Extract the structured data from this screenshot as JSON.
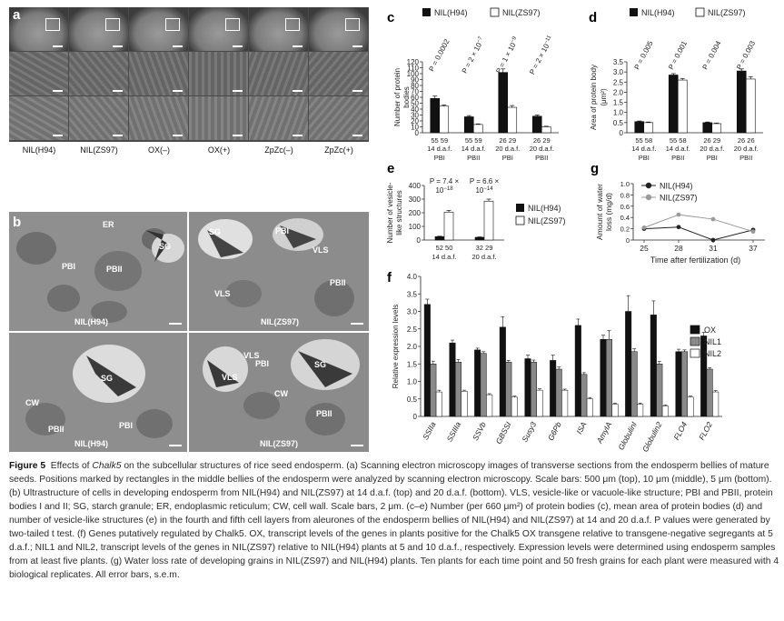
{
  "panel_a": {
    "letter": "a",
    "columns": [
      "NIL(H94)",
      "NIL(ZS97)",
      "OX(–)",
      "OX(+)",
      "ZpZc(–)",
      "ZpZc(+)"
    ]
  },
  "panel_b": {
    "letter": "b",
    "tl": {
      "ER": "ER",
      "SG": "SG",
      "PBI": "PBI",
      "PBII": "PBII",
      "name": "NIL(H94)"
    },
    "tr": {
      "SG": "SG",
      "PBI": "PBI",
      "VLS": "VLS",
      "VLS2": "VLS",
      "PBII": "PBII",
      "name": "NIL(ZS97)"
    },
    "bl": {
      "SG": "SG",
      "CW": "CW",
      "PBII": "PBII",
      "PBI": "PBI",
      "name": "NIL(H94)"
    },
    "br": {
      "VLS": "VLS",
      "PBI": "PBI",
      "VLS2": "VLS",
      "SG": "SG",
      "CW": "CW",
      "PBII": "PBII",
      "name": "NIL(ZS97)"
    }
  },
  "chart_data": [
    {
      "id": "c",
      "type": "bar",
      "letter": "c",
      "ylabel": "Number of protein bodies",
      "ylim": [
        0,
        120
      ],
      "yticks": [
        0,
        10,
        20,
        30,
        40,
        50,
        60,
        70,
        80,
        90,
        100,
        110,
        120
      ],
      "legend": [
        "NIL(H94)",
        "NIL(ZS97)"
      ],
      "series": [
        {
          "name": "NIL(H94)",
          "values": [
            58,
            27,
            102,
            28
          ],
          "err": [
            4,
            2,
            6,
            2
          ]
        },
        {
          "name": "NIL(ZS97)",
          "values": [
            45,
            14,
            43,
            10
          ],
          "err": [
            2,
            1,
            3,
            1
          ]
        }
      ],
      "categories": [
        {
          "n": "55 59",
          "time": "14 d.a.f.",
          "pb": "PBI"
        },
        {
          "n": "55 59",
          "time": "14 d.a.f.",
          "pb": "PBII"
        },
        {
          "n": "26 29",
          "time": "20 d.a.f.",
          "pb": "PBI"
        },
        {
          "n": "26 29",
          "time": "20 d.a.f.",
          "pb": "PBII"
        }
      ],
      "pvalues": [
        {
          "p": "P = 0.0002",
          "sup": ""
        },
        {
          "p": "P = 2 × 10",
          "sup": "−7"
        },
        {
          "p": "P = 1 × 10",
          "sup": "−9"
        },
        {
          "p": "P = 2 × 10",
          "sup": "−11"
        }
      ]
    },
    {
      "id": "d",
      "type": "bar",
      "letter": "d",
      "ylabel": "Area of protein body",
      "yunit": "(μm²)",
      "ylim": [
        0,
        3.5
      ],
      "yticks": [
        0,
        0.5,
        1.0,
        1.5,
        2.0,
        2.5,
        3.0,
        3.5
      ],
      "legend": [
        "NIL(H94)",
        "NIL(ZS97)"
      ],
      "series": [
        {
          "name": "NIL(H94)",
          "values": [
            0.55,
            2.85,
            0.5,
            3.05
          ],
          "err": [
            0.03,
            0.07,
            0.03,
            0.1
          ]
        },
        {
          "name": "NIL(ZS97)",
          "values": [
            0.5,
            2.6,
            0.45,
            2.65
          ],
          "err": [
            0.03,
            0.08,
            0.03,
            0.12
          ]
        }
      ],
      "categories": [
        {
          "n": "55 58",
          "time": "14 d.a.f.",
          "pb": "PBI"
        },
        {
          "n": "55 58",
          "time": "14 d.a.f.",
          "pb": "PBII"
        },
        {
          "n": "26 29",
          "time": "20 d.a.f.",
          "pb": "PBI"
        },
        {
          "n": "26 26",
          "time": "20 d.a.f.",
          "pb": "PBII"
        }
      ],
      "pvalues": [
        {
          "p": "P = 0.005",
          "sup": ""
        },
        {
          "p": "P = 0.001",
          "sup": ""
        },
        {
          "p": "P = 0.004",
          "sup": ""
        },
        {
          "p": "P = 0.003",
          "sup": ""
        }
      ]
    },
    {
      "id": "e",
      "type": "bar",
      "letter": "e",
      "ylabel": "Number of vesicle-like structures",
      "ylim": [
        0,
        400
      ],
      "yticks": [
        0,
        100,
        200,
        300,
        400
      ],
      "legend": [
        "NIL(H94)",
        "NIL(ZS97)"
      ],
      "series": [
        {
          "name": "NIL(H94)",
          "values": [
            25,
            20
          ],
          "err": [
            3,
            3
          ]
        },
        {
          "name": "NIL(ZS97)",
          "values": [
            205,
            285
          ],
          "err": [
            12,
            15
          ]
        }
      ],
      "categories": [
        {
          "n": "52 50",
          "time": "14 d.a.f."
        },
        {
          "n": "32 29",
          "time": "20 d.a.f."
        }
      ],
      "pvalues": [
        {
          "p1": "P = 7.4 ×",
          "p2": "10",
          "sup": "−18"
        },
        {
          "p1": "P = 6.6 ×",
          "p2": "10",
          "sup": "−14"
        }
      ]
    },
    {
      "id": "g",
      "type": "line",
      "letter": "g",
      "ylabel": "Amount of water loss (mg/d)",
      "xlabel": "Time after fertilization (d)",
      "x": [
        25,
        28,
        31,
        37
      ],
      "ylim": [
        0,
        1.0
      ],
      "yticks": [
        0,
        0.2,
        0.4,
        0.6,
        0.8,
        1.0
      ],
      "series": [
        {
          "name": "NIL(H94)",
          "values": [
            0.2,
            0.23,
            0.0,
            0.18
          ],
          "color": "#222222"
        },
        {
          "name": "NIL(ZS97)",
          "values": [
            0.22,
            0.45,
            0.37,
            0.15
          ],
          "color": "#9a9a9a"
        }
      ]
    },
    {
      "id": "f",
      "type": "bar",
      "letter": "f",
      "ylabel": "Relative expression levels",
      "ylim": [
        0,
        4.0
      ],
      "yticks": [
        0,
        0.5,
        1.0,
        1.5,
        2.0,
        2.5,
        3.0,
        3.5,
        4.0
      ],
      "categories": [
        "SSIIa",
        "SSIIIa",
        "SSVb",
        "GBSSI",
        "Susy3",
        "G6Pb",
        "ISA",
        "AmyIA",
        "GlobulinI",
        "Globulin2",
        "FLO4",
        "FLO2"
      ],
      "series": [
        {
          "name": "OX",
          "values": [
            3.2,
            2.1,
            1.9,
            2.55,
            1.65,
            1.6,
            2.6,
            2.2,
            3.0,
            2.9,
            1.85,
            2.3
          ],
          "err": [
            0.15,
            0.08,
            0.05,
            0.3,
            0.1,
            0.15,
            0.18,
            0.12,
            0.45,
            0.4,
            0.07,
            0.1
          ],
          "color": "#111111"
        },
        {
          "name": "NIL1",
          "values": [
            1.5,
            1.55,
            1.8,
            1.55,
            1.55,
            1.35,
            1.2,
            2.2,
            1.85,
            1.5,
            1.85,
            1.35
          ],
          "err": [
            0.08,
            0.07,
            0.05,
            0.05,
            0.06,
            0.06,
            0.05,
            0.25,
            0.08,
            0.07,
            0.05,
            0.04
          ],
          "color": "#8a8a8a"
        },
        {
          "name": "NIL2",
          "values": [
            0.7,
            0.72,
            0.62,
            0.55,
            0.75,
            0.75,
            0.5,
            0.35,
            0.35,
            0.3,
            0.55,
            0.7
          ],
          "err": [
            0.05,
            0.03,
            0.03,
            0.03,
            0.04,
            0.03,
            0.04,
            0.03,
            0.03,
            0.03,
            0.03,
            0.04
          ],
          "color": "#ffffff"
        }
      ]
    }
  ],
  "caption": {
    "figure": "Figure 5",
    "title_pre": "Effects of ",
    "gene": "Chalk5",
    "title_post": " on the subcellular structures of rice seed endosperm. (",
    "text": "a) Scanning electron microscopy images of transverse sections from the endosperm bellies of mature seeds. Positions marked by rectangles in the middle bellies of the endosperm were analyzed by scanning electron microscopy. Scale bars: 500 μm (top), 10 μm (middle), 5 μm (bottom). (b) Ultrastructure of cells in developing endosperm from NIL(H94) and NIL(ZS97) at 14 d.a.f. (top) and 20 d.a.f. (bottom). VLS, vesicle-like or vacuole-like structure; PBI and PBII, protein bodies I and II; SG, starch granule; ER, endoplasmic reticulum; CW, cell wall. Scale bars, 2 μm. (c–e) Number (per 660 μm²) of protein bodies (c), mean area of protein bodies (d) and number of vesicle-like structures (e) in the fourth and fifth cell layers from aleurones of the endosperm bellies of NIL(H94) and NIL(ZS97) at 14 and 20 d.a.f. P values were generated by two-tailed t test. (f) Genes putatively regulated by Chalk5. OX, transcript levels of the genes in plants positive for the Chalk5 OX transgene relative to transgene-negative segregants at 5 d.a.f.; NIL1 and NIL2, transcript levels of the genes in NIL(ZS97) relative to NIL(H94) plants at 5 and 10 d.a.f., respectively. Expression levels were determined using endosperm samples from at least five plants. (g) Water loss rate of developing grains in NIL(ZS97) and NIL(H94) plants. Ten plants for each time point and 50 fresh grains for each plant were measured with 4 biological replicates. All error bars, s.e.m."
  }
}
